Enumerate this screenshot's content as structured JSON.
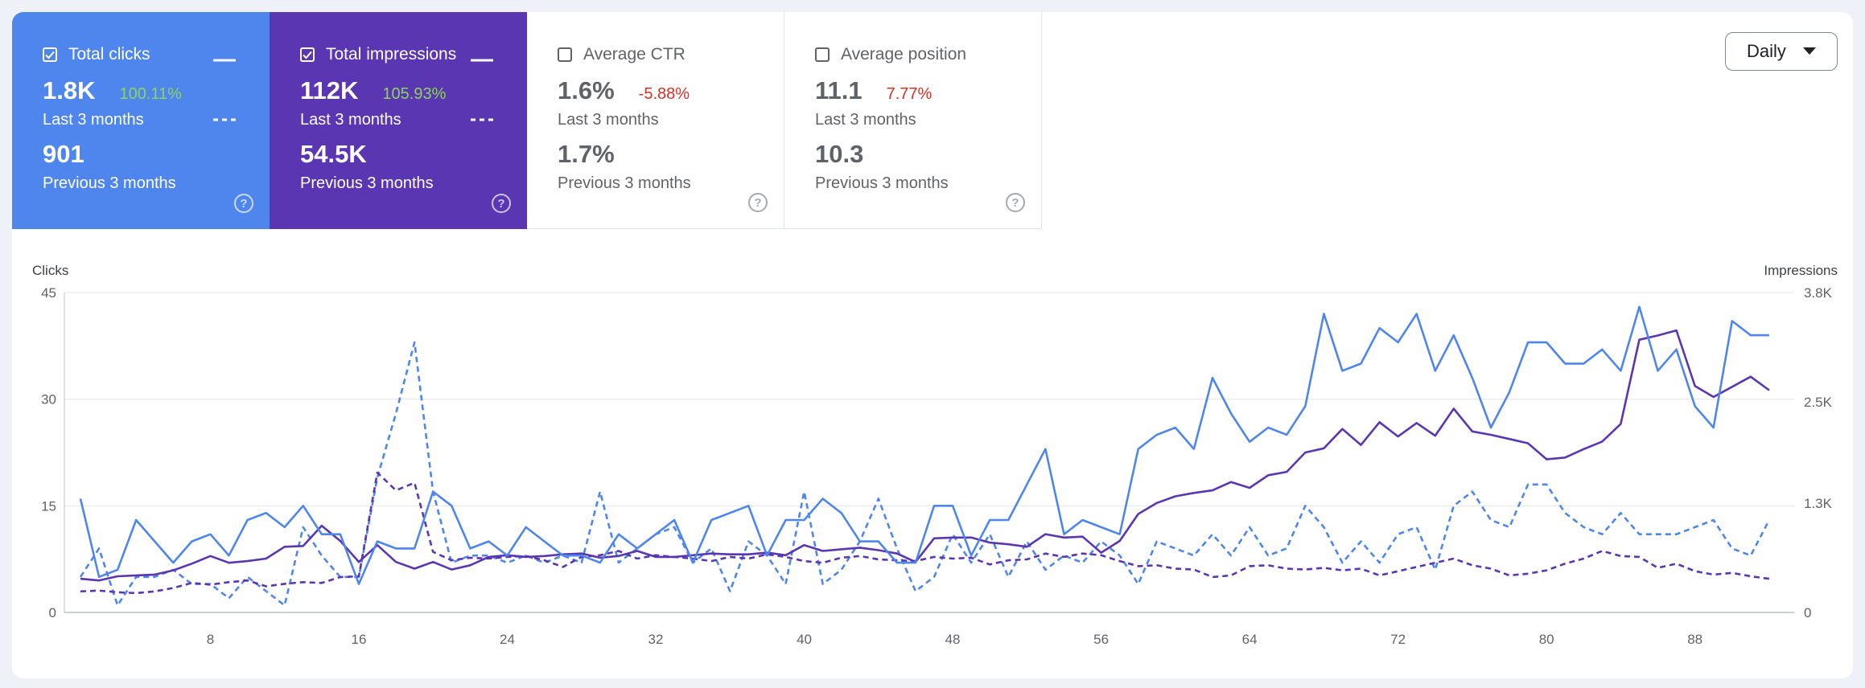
{
  "cards": [
    {
      "title": "Total clicks",
      "checked": true,
      "current": "1.8K",
      "change": "100.11%",
      "current_label": "Last 3 months",
      "previous": "901",
      "previous_label": "Previous 3 months",
      "help": "?"
    },
    {
      "title": "Total impressions",
      "checked": true,
      "current": "112K",
      "change": "105.93%",
      "current_label": "Last 3 months",
      "previous": "54.5K",
      "previous_label": "Previous 3 months",
      "help": "?"
    },
    {
      "title": "Average CTR",
      "checked": false,
      "current": "1.6%",
      "change": "-5.88%",
      "current_label": "Last 3 months",
      "previous": "1.7%",
      "previous_label": "Previous 3 months",
      "help": "?"
    },
    {
      "title": "Average position",
      "checked": false,
      "current": "11.1",
      "change": "7.77%",
      "current_label": "Last 3 months",
      "previous": "10.3",
      "previous_label": "Previous 3 months",
      "help": "?"
    }
  ],
  "granularity": {
    "selected": "Daily"
  },
  "colors": {
    "clicks": "#4f86ee",
    "impressions": "#5b36b2",
    "positive": "#8bd35f",
    "negative": "#d93025",
    "axis_text": "#5f6368",
    "grid": "#e6e6e6"
  },
  "chart_data": {
    "type": "line",
    "ylabel_left": "Clicks",
    "ylabel_right": "Impressions",
    "x_ticks": [
      8,
      16,
      24,
      32,
      40,
      48,
      56,
      64,
      72,
      80,
      88
    ],
    "x_range": [
      1,
      93
    ],
    "y_left": {
      "range": [
        0,
        45
      ],
      "ticks": [
        0,
        15,
        30,
        45
      ],
      "tick_labels": [
        "0",
        "15",
        "30",
        "45"
      ]
    },
    "y_right": {
      "range": [
        0,
        3800
      ],
      "ticks": [
        0,
        1300,
        2500,
        3800
      ],
      "tick_labels": [
        "0",
        "1.3K",
        "2.5K",
        "3.8K"
      ]
    },
    "grid": true,
    "series": [
      {
        "key": "clicks_last",
        "axis": "left",
        "style": "solid",
        "color": "#4f86ee",
        "values": [
          16,
          5,
          6,
          13,
          10,
          7,
          10,
          11,
          8,
          13,
          14,
          12,
          15,
          11,
          11,
          4,
          10,
          9,
          9,
          17,
          15,
          9,
          10,
          8,
          12,
          10,
          8,
          8,
          7,
          11,
          9,
          11,
          13,
          7,
          13,
          14,
          15,
          8,
          13,
          13,
          16,
          14,
          10,
          10,
          7,
          7,
          15,
          15,
          8,
          13,
          13,
          18,
          23,
          11,
          13,
          12,
          11,
          23,
          25,
          26,
          23,
          33,
          28,
          24,
          26,
          25,
          29,
          42,
          34,
          35,
          40,
          38,
          42,
          34,
          39,
          33,
          26,
          31,
          38,
          38,
          35,
          35,
          37,
          34,
          43,
          34,
          37,
          29,
          26,
          41,
          39,
          39
        ]
      },
      {
        "key": "clicks_prev",
        "axis": "left",
        "style": "dashed",
        "color": "#4f86ee",
        "values": [
          5,
          9,
          1,
          5,
          5,
          6,
          4,
          4,
          2,
          5,
          3,
          1,
          12,
          8,
          5,
          5,
          19,
          28,
          38,
          17,
          7,
          8,
          8,
          7,
          8,
          7,
          8,
          7,
          17,
          7,
          9,
          11,
          12,
          7,
          9,
          3,
          10,
          8,
          4,
          17,
          4,
          6,
          10,
          16,
          9,
          3,
          5,
          11,
          7,
          11,
          5,
          10,
          6,
          8,
          7,
          10,
          8,
          4,
          10,
          9,
          8,
          11,
          8,
          12,
          8,
          9,
          15,
          12,
          7,
          10,
          7,
          11,
          12,
          6,
          15,
          17,
          13,
          12,
          18,
          18,
          14,
          12,
          11,
          14,
          11,
          11,
          11,
          12,
          13,
          9,
          8,
          13
        ]
      },
      {
        "key": "impressions_last",
        "axis": "right",
        "style": "solid",
        "color": "#5b36b2",
        "values": [
          400,
          380,
          430,
          440,
          450,
          500,
          580,
          670,
          590,
          610,
          640,
          780,
          790,
          1030,
          850,
          600,
          800,
          600,
          520,
          600,
          510,
          560,
          660,
          680,
          660,
          670,
          690,
          700,
          650,
          670,
          730,
          660,
          660,
          680,
          700,
          690,
          690,
          710,
          680,
          800,
          730,
          750,
          770,
          740,
          700,
          600,
          880,
          890,
          890,
          830,
          810,
          780,
          930,
          890,
          900,
          710,
          850,
          1170,
          1300,
          1380,
          1420,
          1450,
          1550,
          1480,
          1630,
          1670,
          1900,
          1950,
          2180,
          1990,
          2260,
          2090,
          2250,
          2100,
          2420,
          2150,
          2110,
          2060,
          2010,
          1820,
          1840,
          1940,
          2030,
          2240,
          3240,
          3290,
          3350,
          2690,
          2560,
          2680,
          2800,
          2640
        ]
      },
      {
        "key": "impressions_prev",
        "axis": "right",
        "style": "dashed",
        "color": "#5b36b2",
        "values": [
          250,
          260,
          240,
          230,
          250,
          290,
          350,
          330,
          360,
          380,
          310,
          340,
          360,
          350,
          420,
          430,
          1660,
          1450,
          1540,
          720,
          620,
          650,
          640,
          660,
          670,
          620,
          540,
          660,
          680,
          730,
          640,
          680,
          660,
          640,
          610,
          660,
          640,
          690,
          660,
          610,
          590,
          650,
          670,
          630,
          620,
          610,
          660,
          640,
          650,
          570,
          620,
          630,
          700,
          660,
          700,
          680,
          610,
          550,
          560,
          520,
          510,
          420,
          440,
          550,
          560,
          520,
          510,
          530,
          500,
          520,
          440,
          490,
          540,
          590,
          640,
          560,
          520,
          440,
          460,
          500,
          580,
          640,
          730,
          670,
          660,
          530,
          580,
          490,
          450,
          470,
          430,
          400
        ]
      }
    ]
  }
}
